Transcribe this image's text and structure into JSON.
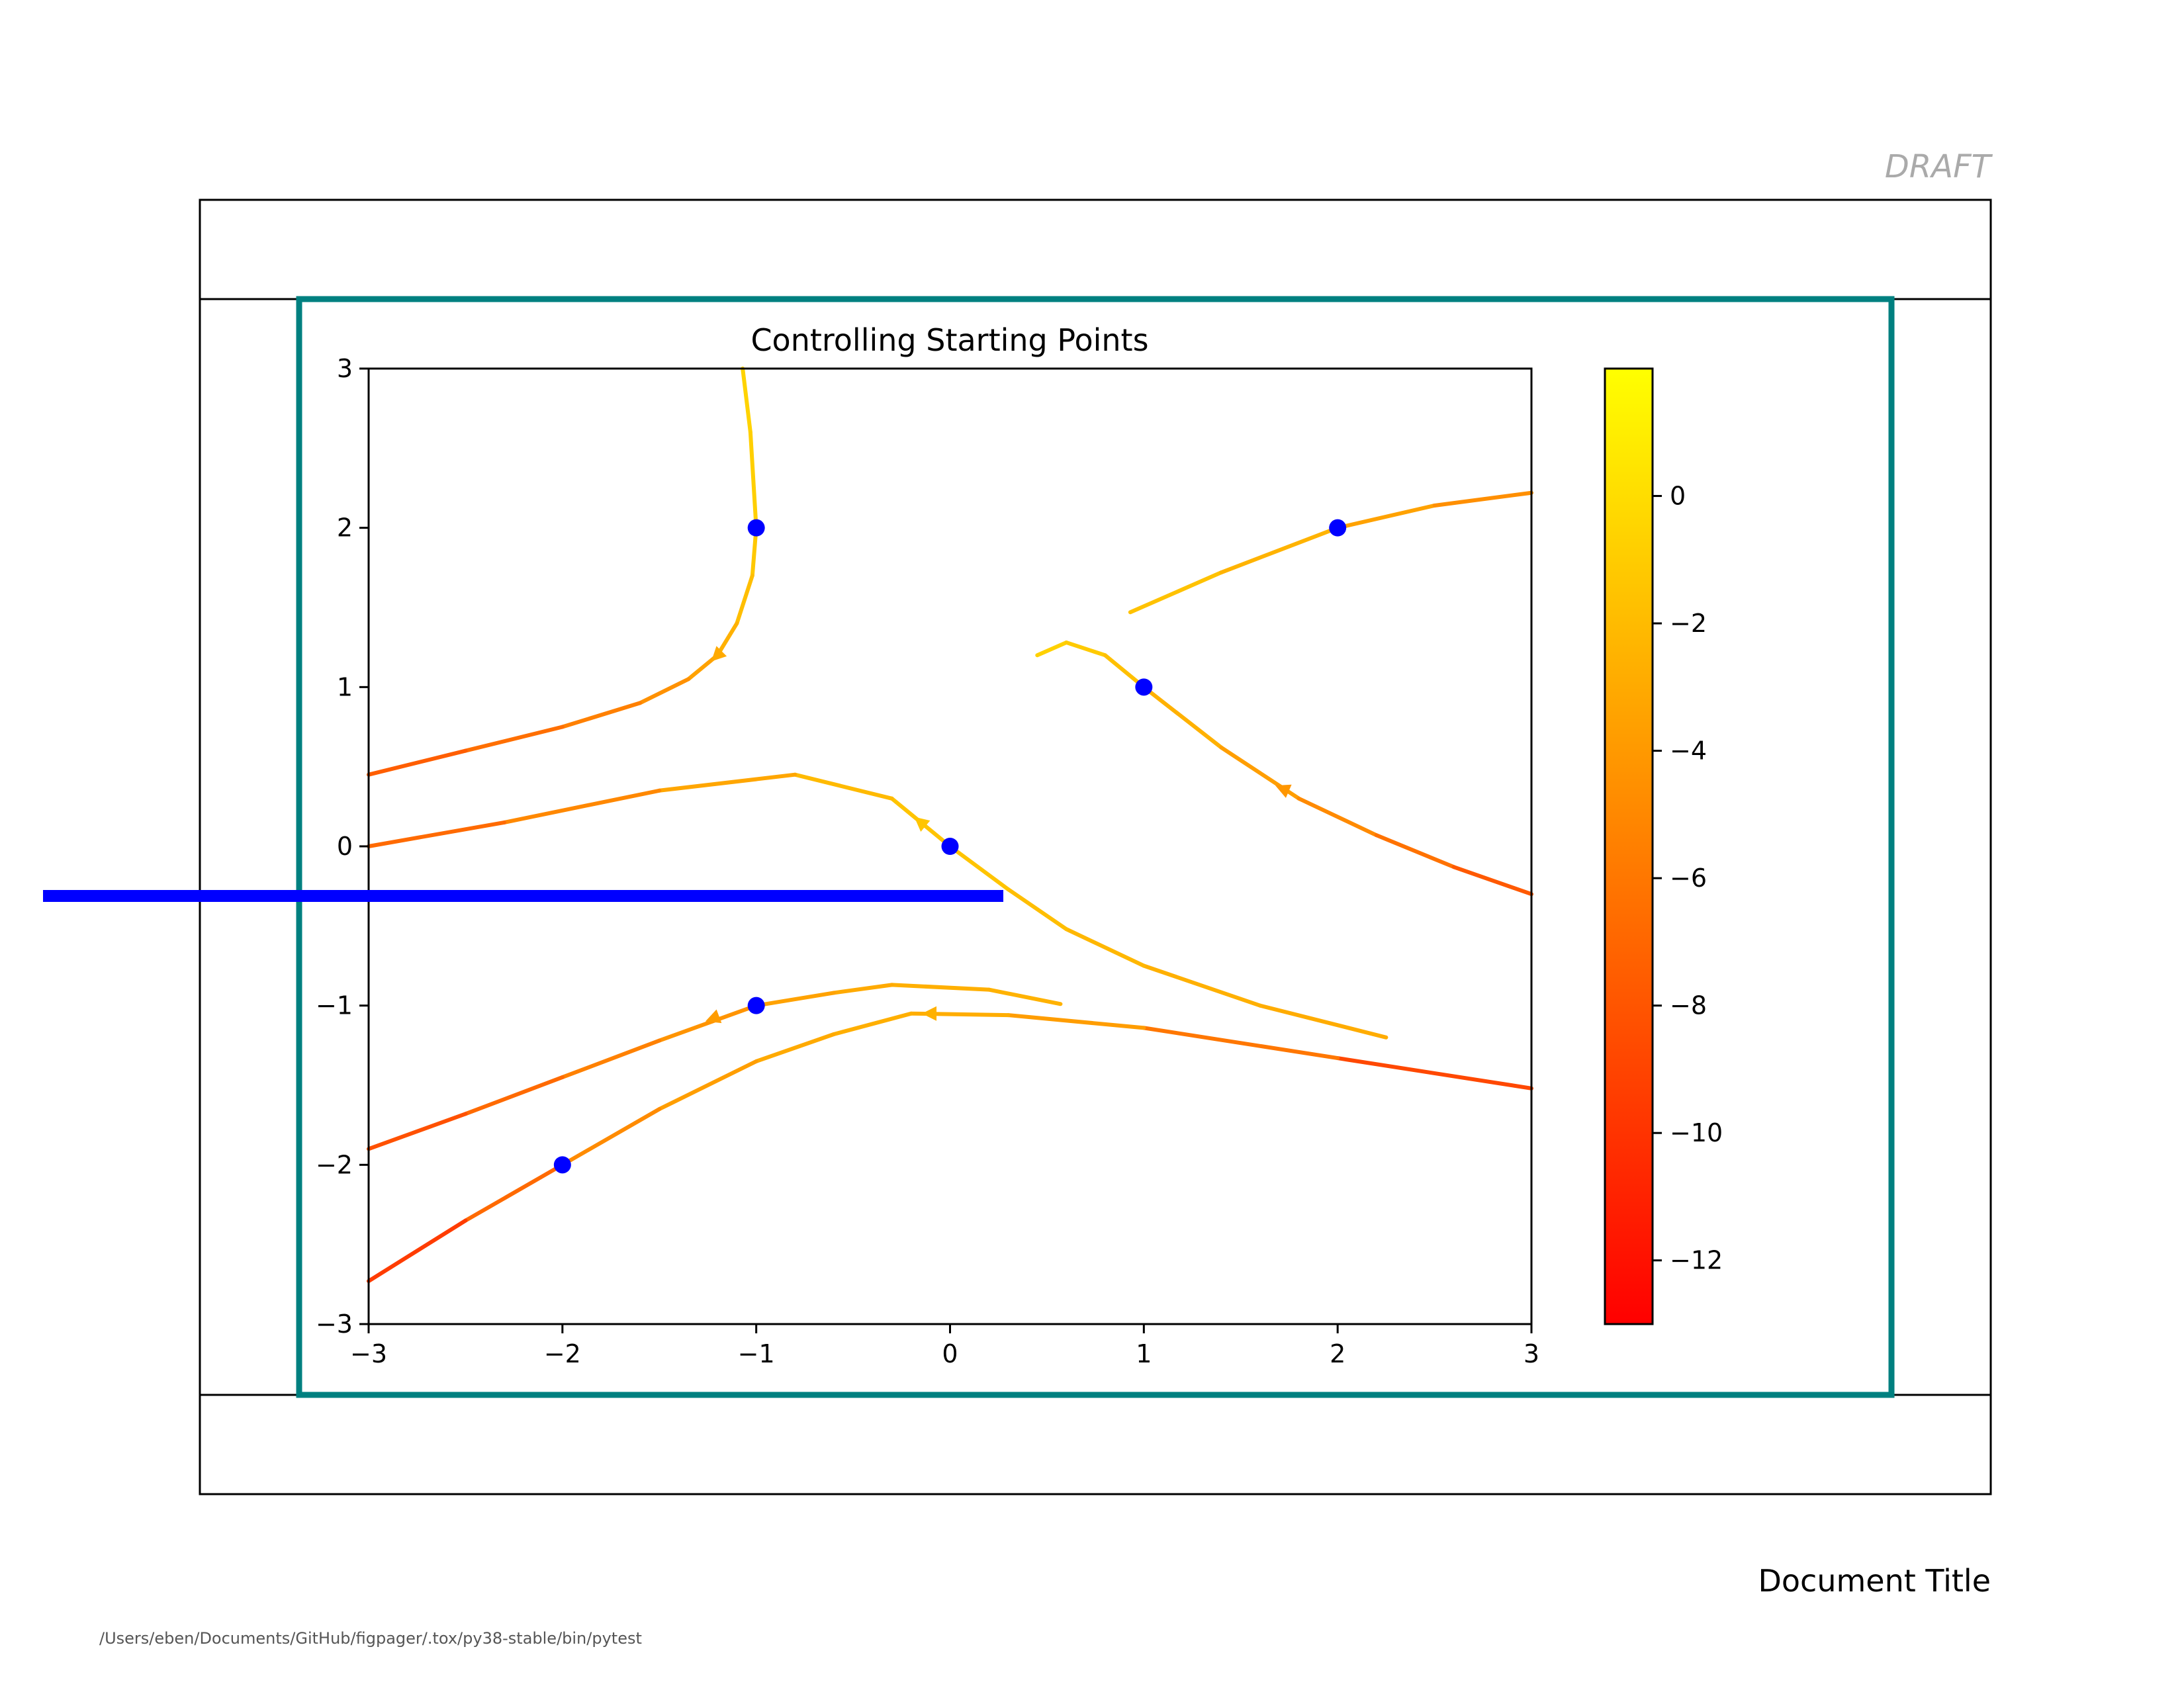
{
  "page": {
    "draft_label": "DRAFT",
    "document_title": "Document Title",
    "file_path": "/Users/eben/Documents/GitHub/figpager/.tox/py38-stable/bin/pytest",
    "colors": {
      "frame": "#000000",
      "highlight_box": "#008080",
      "overlay_bar": "#0000ff",
      "draft": "#aaaaaa",
      "path": "#555555"
    }
  },
  "chart_data": {
    "type": "streamplot",
    "title": "Controlling Starting Points",
    "xlabel": "",
    "ylabel": "",
    "xlim": [
      -3,
      3
    ],
    "ylim": [
      -3,
      3
    ],
    "xticks": [
      -3,
      -2,
      -1,
      0,
      1,
      2,
      3
    ],
    "yticks": [
      -3,
      -2,
      -1,
      0,
      1,
      2,
      3
    ],
    "xtick_labels": [
      "−3",
      "−2",
      "−1",
      "0",
      "1",
      "2",
      "3"
    ],
    "ytick_labels": [
      "−3",
      "−2",
      "−1",
      "0",
      "1",
      "2",
      "3"
    ],
    "grid": false,
    "colormap": "autumn",
    "colorbar": {
      "range": [
        -13,
        2
      ],
      "ticks": [
        0,
        -2,
        -4,
        -6,
        -8,
        -10,
        -12
      ],
      "tick_labels": [
        "0",
        "−2",
        "−4",
        "−6",
        "−8",
        "−10",
        "−12"
      ]
    },
    "start_points": [
      {
        "x": -1,
        "y": 2
      },
      {
        "x": 2,
        "y": 2
      },
      {
        "x": 1,
        "y": 1
      },
      {
        "x": 0,
        "y": 0
      },
      {
        "x": -1,
        "y": -1
      },
      {
        "x": -2,
        "y": -2
      }
    ],
    "streamlines": [
      {
        "points": [
          [
            -1.07,
            3.0
          ],
          [
            -1.03,
            2.6
          ],
          [
            -1.0,
            2.0
          ],
          [
            -1.02,
            1.7
          ],
          [
            -1.1,
            1.4
          ],
          [
            -1.2,
            1.2
          ],
          [
            -1.35,
            1.05
          ],
          [
            -1.6,
            0.9
          ],
          [
            -2.0,
            0.75
          ],
          [
            -2.5,
            0.6
          ],
          [
            -3.0,
            0.45
          ]
        ],
        "colors": [
          -0.5,
          -0.7,
          -1.0,
          -1.5,
          -2.2,
          -3.0,
          -4.0,
          -5.0,
          -6.0,
          -7.0,
          -8.0
        ],
        "arrows": [
          {
            "x": -1.2,
            "y": 1.2,
            "dx": -0.6,
            "dy": -0.6
          }
        ]
      },
      {
        "points": [
          [
            0.93,
            1.47
          ],
          [
            1.4,
            1.72
          ],
          [
            2.0,
            2.0
          ],
          [
            2.5,
            2.14
          ],
          [
            3.0,
            2.22
          ]
        ],
        "colors": [
          -1.2,
          -2.0,
          -3.0,
          -4.0,
          -5.2
        ],
        "arrows": []
      },
      {
        "points": [
          [
            0.45,
            1.2
          ],
          [
            0.6,
            1.28
          ],
          [
            0.8,
            1.2
          ],
          [
            1.0,
            1.0
          ],
          [
            1.4,
            0.62
          ],
          [
            1.8,
            0.3
          ],
          [
            2.2,
            0.07
          ],
          [
            2.6,
            -0.13
          ],
          [
            3.0,
            -0.3
          ]
        ],
        "colors": [
          -0.6,
          -0.8,
          -1.4,
          -2.0,
          -3.2,
          -4.2,
          -5.6,
          -7.0,
          -8.5
        ],
        "arrows": [
          {
            "x": 1.72,
            "y": 0.36,
            "dx": -0.7,
            "dy": 0.3
          }
        ]
      },
      {
        "points": [
          [
            2.25,
            -1.2
          ],
          [
            1.6,
            -1.0
          ],
          [
            1.0,
            -0.75
          ],
          [
            0.6,
            -0.52
          ],
          [
            0.3,
            -0.27
          ],
          [
            0.0,
            0.0
          ],
          [
            -0.3,
            0.3
          ],
          [
            -0.8,
            0.45
          ],
          [
            -1.5,
            0.35
          ],
          [
            -2.3,
            0.15
          ],
          [
            -3.0,
            0.0
          ]
        ],
        "colors": [
          -3.0,
          -2.8,
          -2.5,
          -2.0,
          -1.6,
          -1.4,
          -1.6,
          -2.5,
          -4.0,
          -6.0,
          -7.5
        ],
        "arrows": [
          {
            "x": -0.15,
            "y": 0.15,
            "dx": -0.6,
            "dy": 0.5
          }
        ]
      },
      {
        "points": [
          [
            0.57,
            -0.99
          ],
          [
            0.2,
            -0.9
          ],
          [
            -0.3,
            -0.87
          ],
          [
            -0.6,
            -0.92
          ],
          [
            -1.0,
            -1.0
          ],
          [
            -1.5,
            -1.22
          ],
          [
            -2.0,
            -1.45
          ],
          [
            -2.5,
            -1.68
          ],
          [
            -3.0,
            -1.9
          ]
        ],
        "colors": [
          -2.5,
          -2.6,
          -2.8,
          -3.2,
          -3.8,
          -4.8,
          -6.0,
          -7.5,
          -9.0
        ],
        "arrows": [
          {
            "x": -1.22,
            "y": -1.08,
            "dx": -0.8,
            "dy": -0.3
          }
        ]
      },
      {
        "points": [
          [
            3.0,
            -1.52
          ],
          [
            2.0,
            -1.33
          ],
          [
            1.0,
            -1.14
          ],
          [
            0.3,
            -1.06
          ],
          [
            -0.2,
            -1.05
          ],
          [
            -0.6,
            -1.18
          ],
          [
            -1.0,
            -1.35
          ],
          [
            -1.5,
            -1.65
          ],
          [
            -2.0,
            -2.0
          ],
          [
            -2.5,
            -2.35
          ],
          [
            -3.0,
            -2.73
          ]
        ],
        "colors": [
          -10.0,
          -7.5,
          -4.5,
          -3.0,
          -2.6,
          -2.8,
          -3.2,
          -4.2,
          -5.5,
          -8.0,
          -11.0
        ],
        "arrows": [
          {
            "x": -0.1,
            "y": -1.05,
            "dx": -0.8,
            "dy": 0.0
          }
        ]
      }
    ]
  }
}
